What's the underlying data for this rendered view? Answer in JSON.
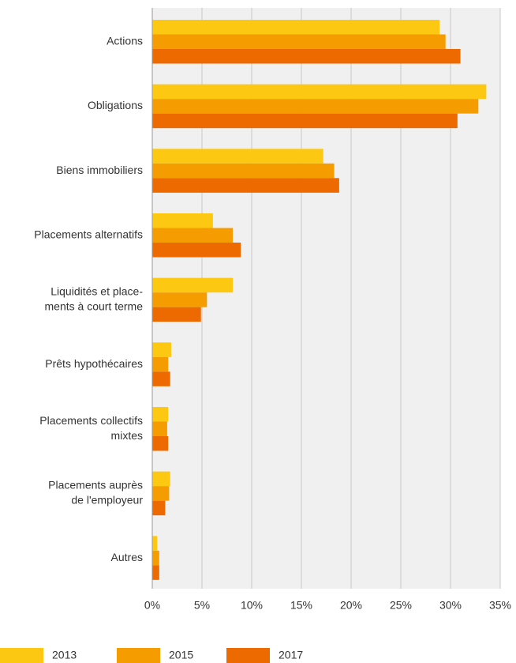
{
  "chart_data": {
    "type": "barh",
    "categories": [
      [
        "Actions"
      ],
      [
        "Obligations"
      ],
      [
        "Biens immobiliers"
      ],
      [
        "Placements alternatifs"
      ],
      [
        "Liquidités et place-",
        "ments à court terme"
      ],
      [
        "Prêts hypothécaires"
      ],
      [
        "Placements collectifs",
        "mixtes"
      ],
      [
        "Placements auprès",
        "de l'employeur"
      ],
      [
        "Autres"
      ]
    ],
    "series": [
      {
        "name": "2013",
        "color": "#fdc811",
        "values": [
          28.9,
          33.6,
          17.2,
          6.1,
          8.1,
          1.9,
          1.6,
          1.8,
          0.5
        ]
      },
      {
        "name": "2015",
        "color": "#f59c00",
        "values": [
          29.5,
          32.8,
          18.3,
          8.1,
          5.5,
          1.6,
          1.5,
          1.7,
          0.7
        ]
      },
      {
        "name": "2017",
        "color": "#ec6a00",
        "values": [
          31.0,
          30.7,
          18.8,
          8.9,
          4.9,
          1.8,
          1.6,
          1.3,
          0.7
        ]
      }
    ],
    "xlim": [
      0,
      35
    ],
    "xticks": [
      {
        "value": 0,
        "label": "0%"
      },
      {
        "value": 5,
        "label": "5%"
      },
      {
        "value": 10,
        "label": "10%"
      },
      {
        "value": 15,
        "label": "15%"
      },
      {
        "value": 20,
        "label": "20%"
      },
      {
        "value": 25,
        "label": "25%"
      },
      {
        "value": 30,
        "label": "30%"
      },
      {
        "value": 35,
        "label": "35%"
      }
    ],
    "grid": true,
    "legend": "bottom"
  }
}
